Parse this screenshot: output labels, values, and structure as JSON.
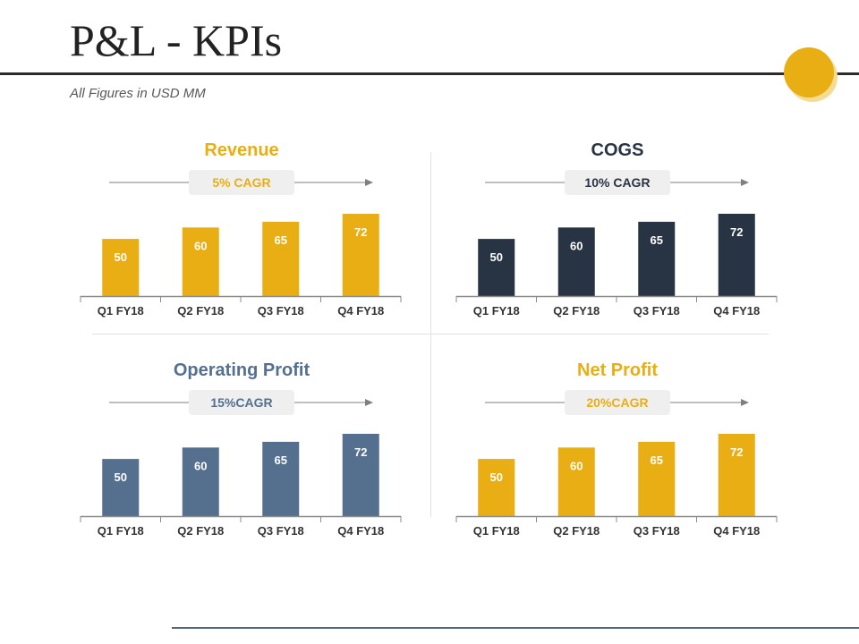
{
  "header": {
    "title": "P&L - KPIs",
    "subtitle": "All Figures in USD MM"
  },
  "colors": {
    "gold": "#e8ae14",
    "navy": "#283443",
    "slate": "#55708e",
    "badge": "#efefef",
    "axis": "#8c8c8c"
  },
  "chart_data": [
    {
      "type": "bar",
      "title": "Revenue",
      "badge": "5% CAGR",
      "color": "#e8ae14",
      "categories": [
        "Q1 FY18",
        "Q2 FY18",
        "Q3 FY18",
        "Q4 FY18"
      ],
      "values": [
        50,
        60,
        65,
        72
      ],
      "ylim": [
        0,
        72
      ]
    },
    {
      "type": "bar",
      "title": "COGS",
      "badge": "10% CAGR",
      "color": "#283443",
      "categories": [
        "Q1 FY18",
        "Q2 FY18",
        "Q3 FY18",
        "Q4 FY18"
      ],
      "values": [
        50,
        60,
        65,
        72
      ],
      "ylim": [
        0,
        72
      ]
    },
    {
      "type": "bar",
      "title": "Operating Profit",
      "badge": "15%CAGR",
      "color": "#55708e",
      "categories": [
        "Q1 FY18",
        "Q2 FY18",
        "Q3 FY18",
        "Q4 FY18"
      ],
      "values": [
        50,
        60,
        65,
        72
      ],
      "ylim": [
        0,
        72
      ]
    },
    {
      "type": "bar",
      "title": "Net Profit",
      "badge": "20%CAGR",
      "color": "#e8ae14",
      "categories": [
        "Q1 FY18",
        "Q2 FY18",
        "Q3 FY18",
        "Q4 FY18"
      ],
      "values": [
        50,
        60,
        65,
        72
      ],
      "ylim": [
        0,
        72
      ]
    }
  ]
}
